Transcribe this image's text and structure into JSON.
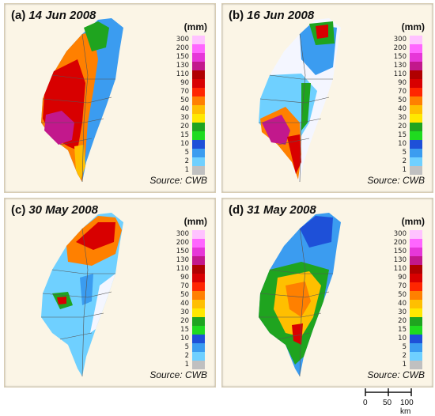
{
  "panels": [
    {
      "id": "a",
      "tag": "(a)",
      "date": "14 Jun 2008",
      "unit": "(mm)",
      "source": "Source: CWB"
    },
    {
      "id": "b",
      "tag": "(b)",
      "date": "16 Jun 2008",
      "unit": "(mm)",
      "source": "Source: CWB"
    },
    {
      "id": "c",
      "tag": "(c)",
      "date": "30 May 2008",
      "unit": "(mm)",
      "source": "Source: CWB"
    },
    {
      "id": "d",
      "tag": "(d)",
      "date": "31 May 2008",
      "unit": "(mm)",
      "source": "Source: CWB"
    }
  ],
  "legend": {
    "levels": [
      "300",
      "200",
      "150",
      "130",
      "110",
      "90",
      "70",
      "50",
      "40",
      "30",
      "20",
      "15",
      "10",
      "5",
      "2",
      "1"
    ],
    "colors": [
      "#ffc2ff",
      "#ff66ff",
      "#e637d8",
      "#c2188c",
      "#b00000",
      "#d80000",
      "#ff2600",
      "#ff8000",
      "#ffbf00",
      "#ffe800",
      "#1fa41f",
      "#1fdb1f",
      "#1e50d8",
      "#3b9cf0",
      "#6fd0ff",
      "#b7f0ff"
    ],
    "bottom_color": "#c0c0c0"
  },
  "scale_bar": {
    "labels": [
      "0",
      "50",
      "100 km"
    ]
  },
  "colors": {
    "panel_bg": "#fbf5e6",
    "county_lines": "#555555"
  }
}
